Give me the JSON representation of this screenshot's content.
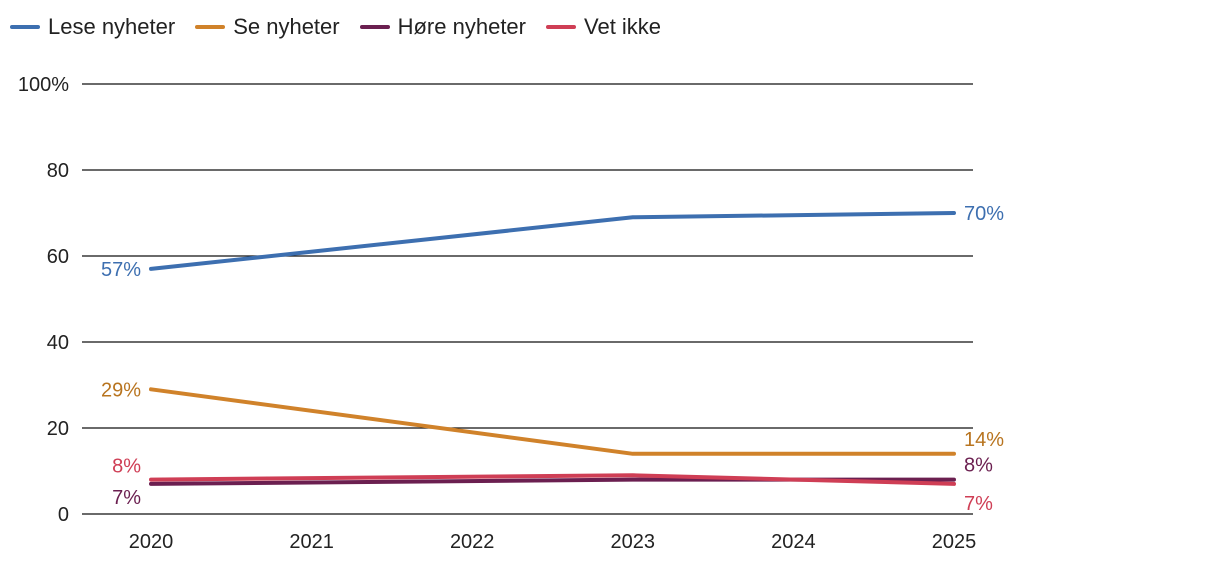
{
  "chart_data": {
    "type": "line",
    "x": [
      "2020",
      "2021",
      "2022",
      "2023",
      "2024",
      "2025"
    ],
    "ylim": [
      0,
      100
    ],
    "y_ticks": [
      0,
      20,
      40,
      60,
      80,
      100
    ],
    "y_tick_labels": [
      "0",
      "20",
      "40",
      "60",
      "80",
      "100%"
    ],
    "grid": true,
    "legend_position": "top-left",
    "series": [
      {
        "name": "Lese nyheter",
        "color": "#3d6fb0",
        "points": [
          [
            2020,
            57
          ],
          [
            2023,
            69
          ],
          [
            2025,
            70
          ]
        ]
      },
      {
        "name": "Se nyheter",
        "color": "#d0822a",
        "points": [
          [
            2020,
            29
          ],
          [
            2023,
            14
          ],
          [
            2025,
            14
          ]
        ]
      },
      {
        "name": "Høre nyheter",
        "color": "#6b1f50",
        "points": [
          [
            2020,
            7
          ],
          [
            2023,
            8
          ],
          [
            2025,
            8
          ]
        ]
      },
      {
        "name": "Vet ikke",
        "color": "#cf3e55",
        "points": [
          [
            2020,
            8
          ],
          [
            2023,
            9
          ],
          [
            2025,
            7
          ]
        ]
      }
    ],
    "annotations": [
      {
        "series": 0,
        "x": 2020,
        "y": 57,
        "text": "57%",
        "side": "left",
        "color": "#3d6fb0"
      },
      {
        "series": 0,
        "x": 2025,
        "y": 70,
        "text": "70%",
        "side": "right",
        "color": "#3d6fb0"
      },
      {
        "series": 1,
        "x": 2020,
        "y": 29,
        "text": "29%",
        "side": "left",
        "color": "#b8741f"
      },
      {
        "series": 1,
        "x": 2025,
        "y": 14,
        "text": "14%",
        "side": "right-above",
        "color": "#b8741f"
      },
      {
        "series": 3,
        "x": 2020,
        "y": 8,
        "text": "8%",
        "side": "left-above",
        "color": "#cf3e55"
      },
      {
        "series": 2,
        "x": 2020,
        "y": 7,
        "text": "7%",
        "side": "left-below",
        "color": "#6b1f50"
      },
      {
        "series": 2,
        "x": 2025,
        "y": 8,
        "text": "8%",
        "side": "right-above",
        "color": "#6b1f50"
      },
      {
        "series": 3,
        "x": 2025,
        "y": 7,
        "text": "7%",
        "side": "right-below",
        "color": "#cf3e55"
      }
    ]
  }
}
